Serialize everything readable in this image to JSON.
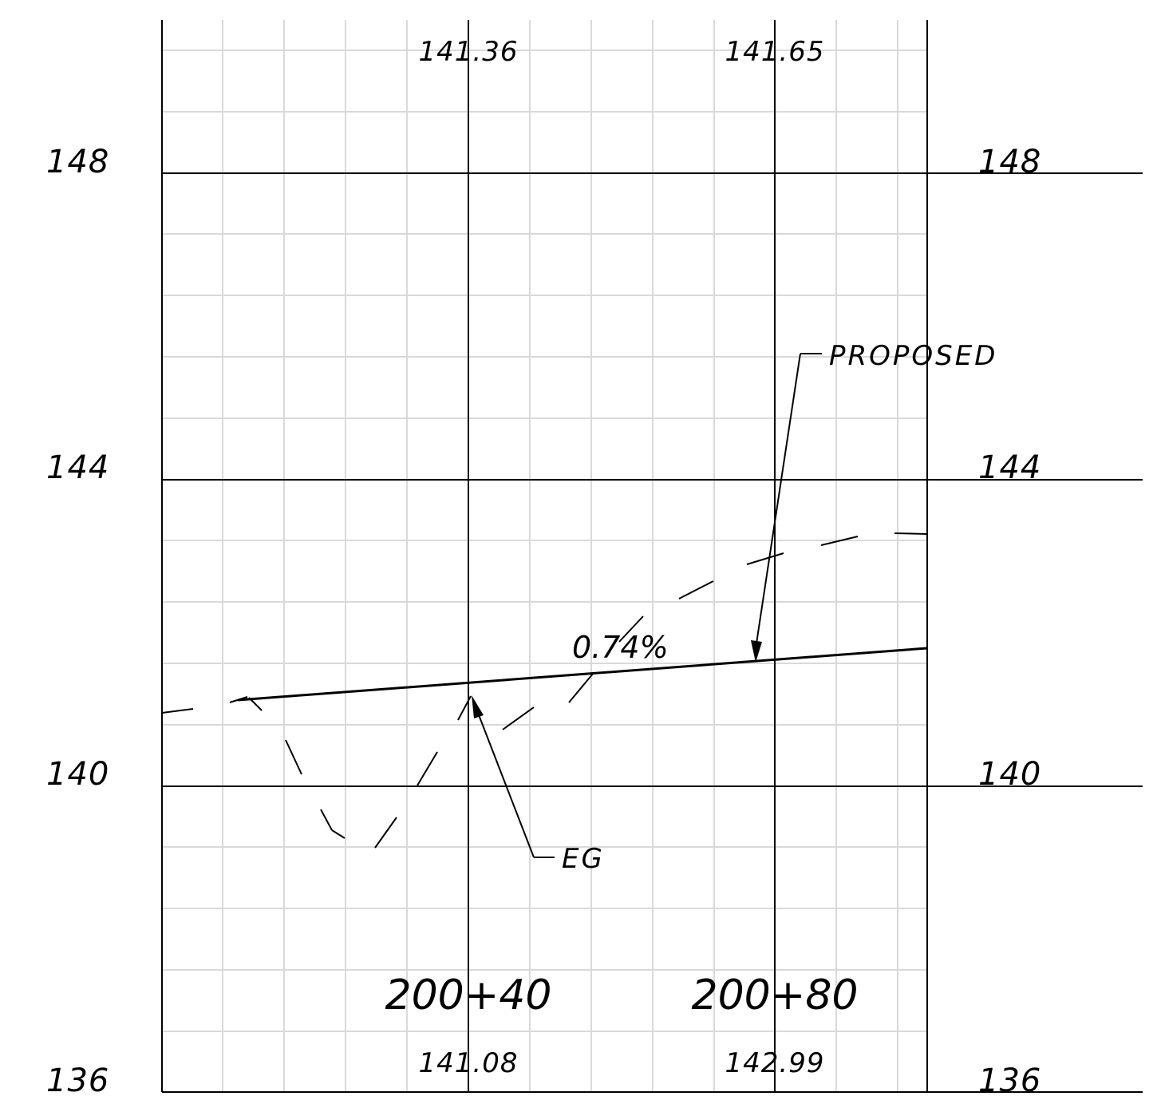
{
  "elevation_labels_left": [
    "148",
    "144",
    "140",
    "136"
  ],
  "elevation_labels_right": [
    "148",
    "144",
    "140",
    "136"
  ],
  "stations": [
    {
      "label": "200+40",
      "top_value": "141.36",
      "bottom_value": "141.08"
    },
    {
      "label": "200+80",
      "top_value": "141.65",
      "bottom_value": "142.99"
    }
  ],
  "annotations": {
    "proposed": "PROPOSED",
    "existing_ground": "EG",
    "grade": "0.74%"
  },
  "colors": {
    "grid_minor": "#d9d9d9",
    "grid_major": "#000000",
    "line": "#000000"
  }
}
